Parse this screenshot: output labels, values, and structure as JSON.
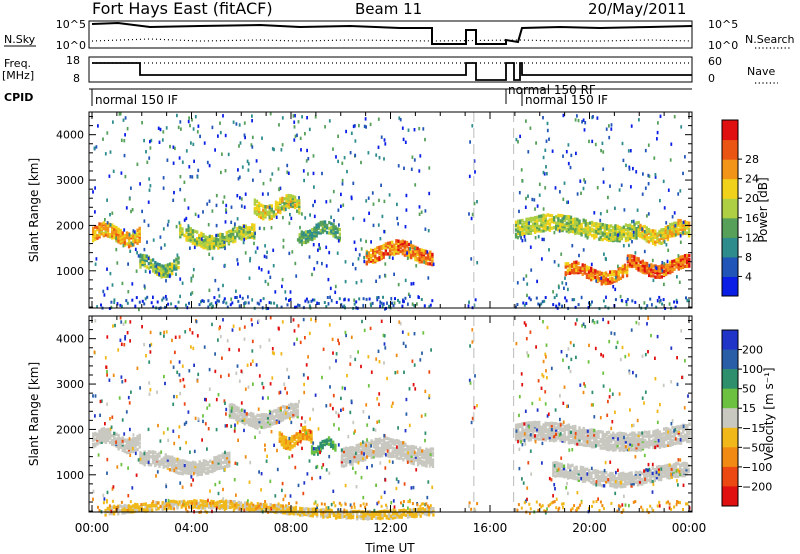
{
  "header": {
    "station": "Fort Hays East (fitACF)",
    "beam": "Beam 11",
    "date": "20/May/2011"
  },
  "top_panels": {
    "nsky_label": "N.Sky",
    "nsky_ticks": [
      "10^5",
      "10^0"
    ],
    "nsearch_label": "N.Search",
    "nsearch_ticks": [
      "10^5",
      "10^0"
    ],
    "freq_label_1": "Freq.",
    "freq_label_2": "[MHz]",
    "freq_ticks": [
      "18",
      "8"
    ],
    "nave_label": "Nave",
    "nave_ticks": [
      "60",
      "0"
    ],
    "cpid_label": "CPID",
    "cpid_entries": [
      "normal 150 IF",
      "normal 150 RF",
      "normal 150 IF"
    ]
  },
  "chart_data": [
    {
      "type": "heatmap",
      "name": "power",
      "ylabel": "Slant Range [km]",
      "xlabel": "Time UT",
      "xlim_hours": [
        0,
        24
      ],
      "ylim": [
        180,
        4500
      ],
      "yticks": [
        "1000",
        "2000",
        "3000",
        "4000"
      ],
      "xticks": [
        "00:00",
        "04:00",
        "08:00",
        "12:00",
        "16:00",
        "20:00",
        "00:00"
      ],
      "colorbar": {
        "label": "Power [dB]",
        "ticks": [
          "4",
          "8",
          "12",
          "16",
          "20",
          "24",
          "28"
        ],
        "colors": [
          "#0a1ee6",
          "#2255b8",
          "#2e8c8c",
          "#56a05a",
          "#aecf44",
          "#f0d21a",
          "#f29418",
          "#eb5514",
          "#e01010"
        ]
      },
      "bands": [
        {
          "t_start": 0.0,
          "t_end": 1.9,
          "range_km": 1850,
          "thickness_km": 300,
          "power_db": 22
        },
        {
          "t_start": 1.9,
          "t_end": 3.5,
          "range_km": 1150,
          "thickness_km": 250,
          "power_db": 14
        },
        {
          "t_start": 3.5,
          "t_end": 6.5,
          "range_km": 1800,
          "thickness_km": 300,
          "power_db": 16
        },
        {
          "t_start": 6.5,
          "t_end": 8.3,
          "range_km": 2450,
          "thickness_km": 300,
          "power_db": 18
        },
        {
          "t_start": 8.3,
          "t_end": 10.0,
          "range_km": 1900,
          "thickness_km": 250,
          "power_db": 12
        },
        {
          "t_start": 11.0,
          "t_end": 13.7,
          "range_km": 1450,
          "thickness_km": 300,
          "power_db": 24
        },
        {
          "t_start": 17.0,
          "t_end": 22.0,
          "range_km": 2000,
          "thickness_km": 350,
          "power_db": 16
        },
        {
          "t_start": 19.0,
          "t_end": 21.5,
          "range_km": 1000,
          "thickness_km": 250,
          "power_db": 24
        },
        {
          "t_start": 21.5,
          "t_end": 24.0,
          "range_km": 1150,
          "thickness_km": 250,
          "power_db": 26
        },
        {
          "t_start": 22.0,
          "t_end": 24.0,
          "range_km": 1900,
          "thickness_km": 300,
          "power_db": 20
        }
      ]
    },
    {
      "type": "heatmap",
      "name": "velocity",
      "ylabel": "Slant Range [km]",
      "xlabel": "Time UT",
      "xlim_hours": [
        0,
        24
      ],
      "ylim": [
        180,
        4500
      ],
      "yticks": [
        "1000",
        "2000",
        "3000",
        "4000"
      ],
      "xticks": [
        "00:00",
        "04:00",
        "08:00",
        "12:00",
        "16:00",
        "20:00",
        "00:00"
      ],
      "colorbar": {
        "label": "Velocity [m s⁻¹]",
        "ticks": [
          "200",
          "100",
          "50",
          "15",
          "−15",
          "−50",
          "−100",
          "−200"
        ],
        "colors": [
          "#2035c8",
          "#2a5fa8",
          "#2e8f6c",
          "#6cc240",
          "#c8c8c0",
          "#f0b818",
          "#f08a12",
          "#eb4812",
          "#e01010"
        ]
      },
      "ground_scatter_color": "#c8c8c0",
      "bands": [
        {
          "t_start": 0.0,
          "t_end": 1.9,
          "range_km": 1800,
          "thickness_km": 300,
          "velocity": 0
        },
        {
          "t_start": 1.9,
          "t_end": 5.5,
          "range_km": 1300,
          "thickness_km": 300,
          "velocity": 0
        },
        {
          "t_start": 5.5,
          "t_end": 8.3,
          "range_km": 2350,
          "thickness_km": 300,
          "velocity": 0
        },
        {
          "t_start": 7.5,
          "t_end": 8.8,
          "range_km": 1850,
          "thickness_km": 250,
          "velocity": -60
        },
        {
          "t_start": 8.8,
          "t_end": 9.8,
          "range_km": 1700,
          "thickness_km": 200,
          "velocity": 40
        },
        {
          "t_start": 10.0,
          "t_end": 13.7,
          "range_km": 1550,
          "thickness_km": 400,
          "velocity": 0
        },
        {
          "t_start": 0.5,
          "t_end": 13.7,
          "range_km": 300,
          "thickness_km": 200,
          "velocity": -40
        },
        {
          "t_start": 17.0,
          "t_end": 24.0,
          "range_km": 1900,
          "thickness_km": 400,
          "velocity": 0
        },
        {
          "t_start": 18.5,
          "t_end": 24.0,
          "range_km": 1050,
          "thickness_km": 300,
          "velocity": 0
        }
      ]
    }
  ]
}
